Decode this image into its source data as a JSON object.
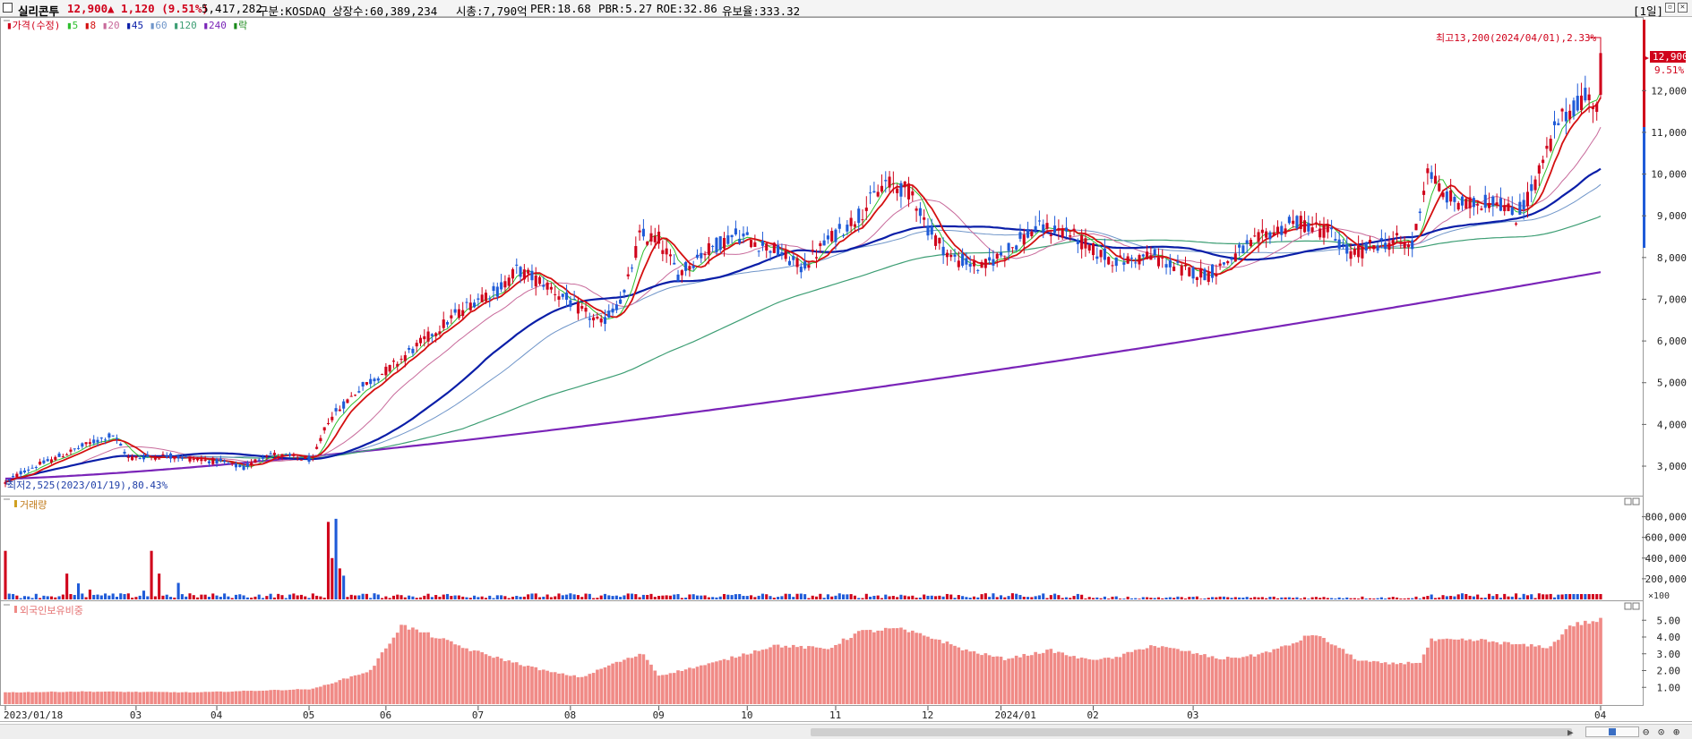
{
  "header": {
    "stock_name": "실리콘투",
    "price": "12,900",
    "change": "▲ 1,120 (9.51%)",
    "volume": "5,417,282",
    "market": "구분:KOSDAQ",
    "shares": "상장수:60,389,234",
    "market_cap": "시총:7,790억",
    "per": "PER:18.68",
    "pbr": "PBR:5.27",
    "roe": "ROE:32.86",
    "reserve": "유보율:333.32",
    "period": "[1일]"
  },
  "colors": {
    "up": "#d0021b",
    "down": "#1f5bd8",
    "ma5": "#2fbf2f",
    "ma8": "#d41010",
    "ma20": "#c86a9b",
    "ma45": "#0a1ea8",
    "ma60": "#6f95c9",
    "ma120": "#3d9e74",
    "ma240": "#7a24b8",
    "foreign": "#f08a86"
  },
  "price_legend": [
    {
      "label": "가격(수정)",
      "color": "#d0021b"
    },
    {
      "label": "5",
      "color": "#2fbf2f"
    },
    {
      "label": "8",
      "color": "#d41010"
    },
    {
      "label": "20",
      "color": "#c86a9b"
    },
    {
      "label": "45",
      "color": "#0a1ea8"
    },
    {
      "label": "60",
      "color": "#6f95c9"
    },
    {
      "label": "120",
      "color": "#3d9e74"
    },
    {
      "label": "240",
      "color": "#7a24b8"
    },
    {
      "label": "락",
      "color": "#1a8a1a"
    }
  ],
  "annotations": {
    "high": "최고13,200(2024/04/01),2.33%",
    "low": "최저2,525(2023/01/19),80.43%",
    "last_price": "12,900",
    "last_pct": "9.51%"
  },
  "volume_panel": {
    "title": "거래량",
    "unit": "×100"
  },
  "foreign_panel": {
    "title": "외국인보유비중"
  },
  "chart_data": [
    {
      "type": "candlestick",
      "title": "가격(수정)",
      "x_labels": [
        "2023/01/18",
        "03",
        "04",
        "05",
        "06",
        "07",
        "08",
        "09",
        "10",
        "11",
        "12",
        "2024/01",
        "02",
        "03",
        "04"
      ],
      "y_ticks": [
        "3,000",
        "4,000",
        "5,000",
        "6,000",
        "7,000",
        "8,000",
        "9,000",
        "10,000",
        "11,000",
        "12,000"
      ],
      "ylim": [
        2400,
        13700
      ],
      "anchors": [
        [
          0,
          2600
        ],
        [
          5,
          2900
        ],
        [
          12,
          3150
        ],
        [
          22,
          3550
        ],
        [
          28,
          3750
        ],
        [
          32,
          3200
        ],
        [
          42,
          3250
        ],
        [
          56,
          3100
        ],
        [
          62,
          2950
        ],
        [
          68,
          3300
        ],
        [
          80,
          3150
        ],
        [
          84,
          4100
        ],
        [
          92,
          4850
        ],
        [
          100,
          5350
        ],
        [
          108,
          5950
        ],
        [
          116,
          6550
        ],
        [
          124,
          7100
        ],
        [
          128,
          7200
        ],
        [
          133,
          7700
        ],
        [
          140,
          7400
        ],
        [
          148,
          6850
        ],
        [
          155,
          6400
        ],
        [
          161,
          7100
        ],
        [
          165,
          8500
        ],
        [
          170,
          8450
        ],
        [
          175,
          7600
        ],
        [
          182,
          8150
        ],
        [
          190,
          8550
        ],
        [
          200,
          8200
        ],
        [
          207,
          7750
        ],
        [
          214,
          8400
        ],
        [
          222,
          9000
        ],
        [
          229,
          9800
        ],
        [
          236,
          9550
        ],
        [
          240,
          8700
        ],
        [
          246,
          8000
        ],
        [
          254,
          7750
        ],
        [
          261,
          8200
        ],
        [
          268,
          8700
        ],
        [
          276,
          8650
        ],
        [
          284,
          8100
        ],
        [
          290,
          7900
        ],
        [
          298,
          8050
        ],
        [
          306,
          7700
        ],
        [
          313,
          7600
        ],
        [
          320,
          8050
        ],
        [
          328,
          8550
        ],
        [
          336,
          8850
        ],
        [
          344,
          8650
        ],
        [
          350,
          8050
        ],
        [
          356,
          8300
        ],
        [
          362,
          8400
        ],
        [
          366,
          8250
        ],
        [
          370,
          10150
        ],
        [
          374,
          9500
        ],
        [
          380,
          9250
        ],
        [
          388,
          9400
        ],
        [
          393,
          8950
        ],
        [
          398,
          9800
        ],
        [
          404,
          11250
        ],
        [
          410,
          11800
        ],
        [
          414,
          11780
        ],
        [
          415,
          12900
        ]
      ],
      "last_candle": {
        "open": 11900,
        "high": 13200,
        "low": 11800,
        "close": 12900
      }
    },
    {
      "type": "bar",
      "title": "거래량",
      "unit": "×100",
      "y_ticks": [
        "200,000",
        "400,000",
        "600,000",
        "800,000"
      ],
      "ylim": [
        0,
        900000
      ],
      "spikes": [
        [
          0,
          470000
        ],
        [
          16,
          250000
        ],
        [
          19,
          155000
        ],
        [
          22,
          95000
        ],
        [
          36,
          85000
        ],
        [
          38,
          470000
        ],
        [
          40,
          250000
        ],
        [
          45,
          160000
        ],
        [
          84,
          750000
        ],
        [
          85,
          400000
        ],
        [
          86,
          780000
        ],
        [
          87,
          300000
        ],
        [
          88,
          230000
        ]
      ],
      "base_level": 40000
    },
    {
      "type": "bar",
      "title": "외국인보유비중",
      "y_ticks": [
        "1.00",
        "2.00",
        "3.00",
        "4.00",
        "5.00"
      ],
      "ylim": [
        0,
        5.6
      ],
      "anchors": [
        [
          0,
          0.7
        ],
        [
          20,
          0.75
        ],
        [
          50,
          0.7
        ],
        [
          80,
          0.9
        ],
        [
          95,
          2.0
        ],
        [
          103,
          4.7
        ],
        [
          112,
          4.0
        ],
        [
          120,
          3.3
        ],
        [
          132,
          2.5
        ],
        [
          142,
          1.9
        ],
        [
          150,
          1.6
        ],
        [
          158,
          2.4
        ],
        [
          166,
          3.0
        ],
        [
          170,
          1.7
        ],
        [
          185,
          2.5
        ],
        [
          200,
          3.5
        ],
        [
          214,
          3.3
        ],
        [
          222,
          4.3
        ],
        [
          232,
          4.5
        ],
        [
          242,
          3.9
        ],
        [
          250,
          3.2
        ],
        [
          260,
          2.7
        ],
        [
          272,
          3.2
        ],
        [
          280,
          2.7
        ],
        [
          288,
          2.7
        ],
        [
          298,
          3.5
        ],
        [
          306,
          3.2
        ],
        [
          316,
          2.7
        ],
        [
          325,
          2.9
        ],
        [
          334,
          3.5
        ],
        [
          340,
          4.2
        ],
        [
          346,
          3.5
        ],
        [
          352,
          2.6
        ],
        [
          360,
          2.4
        ],
        [
          368,
          2.5
        ],
        [
          371,
          3.8
        ],
        [
          384,
          3.8
        ],
        [
          395,
          3.5
        ],
        [
          402,
          3.4
        ],
        [
          407,
          4.7
        ],
        [
          415,
          5.0
        ]
      ]
    }
  ]
}
